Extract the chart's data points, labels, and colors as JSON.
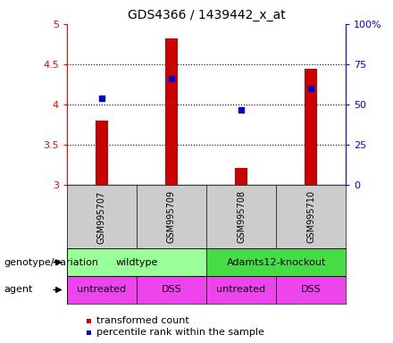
{
  "title": "GDS4366 / 1439442_x_at",
  "samples": [
    "GSM995707",
    "GSM995709",
    "GSM995708",
    "GSM995710"
  ],
  "bar_values": [
    3.8,
    4.82,
    3.22,
    4.45
  ],
  "dot_values": [
    4.08,
    4.32,
    3.93,
    4.2
  ],
  "ylim": [
    3.0,
    5.0
  ],
  "yticks_left": [
    3.0,
    3.5,
    4.0,
    4.5,
    5.0
  ],
  "yticks_right": [
    0,
    25,
    50,
    75,
    100
  ],
  "ytick_labels_right": [
    "0",
    "25",
    "50",
    "75",
    "100%"
  ],
  "bar_color": "#cc0000",
  "dot_color": "#0000cc",
  "bar_width": 0.18,
  "genotype_labels": [
    "wildtype",
    "Adamts12-knockout"
  ],
  "genotype_color_light": "#99ff99",
  "genotype_color_dark": "#44dd44",
  "agent_labels": [
    "untreated",
    "DSS",
    "untreated",
    "DSS"
  ],
  "agent_color": "#ee44ee",
  "sample_bg_color": "#cccccc",
  "left_label_geno": "genotype/variation",
  "left_label_agent": "agent",
  "legend_items": [
    "transformed count",
    "percentile rank within the sample"
  ],
  "legend_colors": [
    "#cc0000",
    "#0000cc"
  ],
  "title_fontsize": 10,
  "tick_fontsize": 8,
  "label_fontsize": 8,
  "row_fontsize": 8
}
